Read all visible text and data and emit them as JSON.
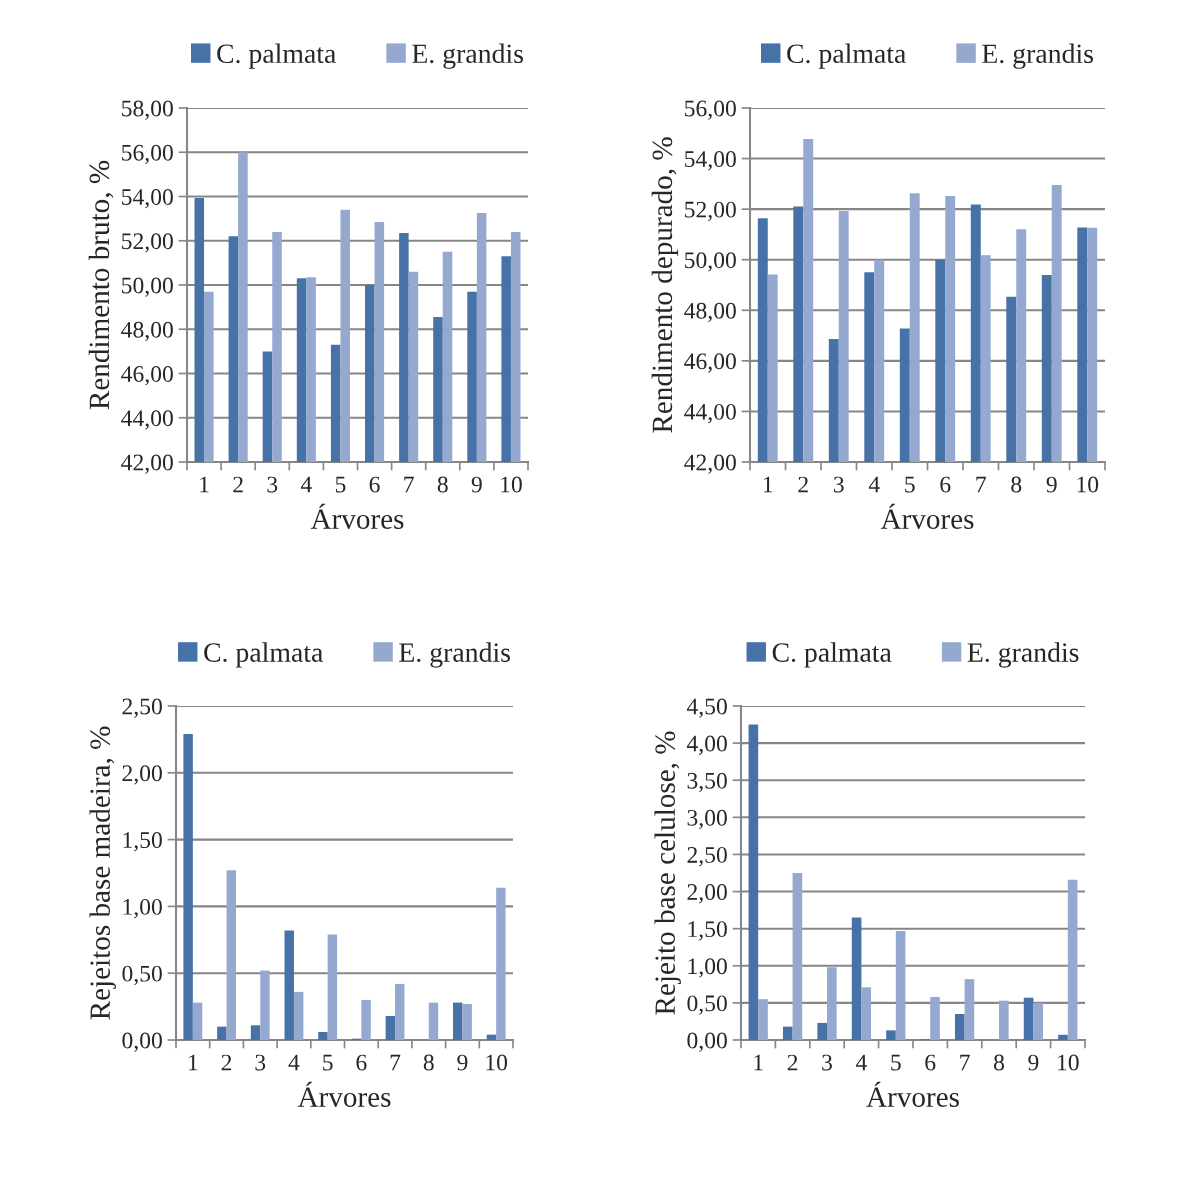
{
  "chart_data": [
    {
      "type": "bar",
      "categories": [
        "1",
        "2",
        "3",
        "4",
        "5",
        "6",
        "7",
        "8",
        "9",
        "10"
      ],
      "xlabel": "Árvores",
      "ylabel": "Rendimento bruto, %",
      "series": [
        {
          "name": "C. palmata",
          "color": "#4672a8",
          "values": [
            53.93,
            52.2,
            47.0,
            50.3,
            47.3,
            50.0,
            52.35,
            48.55,
            49.7,
            51.3
          ]
        },
        {
          "name": "E. grandis",
          "color": "#95a9d0",
          "values": [
            49.7,
            56.0,
            52.4,
            50.35,
            53.4,
            52.85,
            50.6,
            51.5,
            53.25,
            52.4
          ]
        }
      ],
      "ylim": [
        42,
        58
      ],
      "yticks": [
        {
          "value": 42,
          "label": "42,00"
        },
        {
          "value": 44,
          "label": "44,00"
        },
        {
          "value": 46,
          "label": "46,00"
        },
        {
          "value": 48,
          "label": "48,00"
        },
        {
          "value": 50,
          "label": "50,00"
        },
        {
          "value": 52,
          "label": "52,00"
        },
        {
          "value": 54,
          "label": "54,00"
        },
        {
          "value": 56,
          "label": "56,00"
        },
        {
          "value": 58,
          "label": "58,00"
        }
      ],
      "grid": "y",
      "legend": "top"
    },
    {
      "type": "bar",
      "categories": [
        "1",
        "2",
        "3",
        "4",
        "5",
        "6",
        "7",
        "8",
        "9",
        "10"
      ],
      "xlabel": "Árvores",
      "ylabel": "Rendimento depurado, %",
      "series": [
        {
          "name": "C. palmata",
          "color": "#4672a8",
          "values": [
            51.64,
            52.1,
            46.86,
            49.5,
            47.28,
            50.0,
            52.18,
            48.54,
            49.4,
            51.27
          ]
        },
        {
          "name": "E. grandis",
          "color": "#95a9d0",
          "values": [
            49.42,
            54.77,
            51.93,
            50.0,
            52.63,
            52.52,
            50.18,
            51.2,
            52.95,
            51.26
          ]
        }
      ],
      "ylim": [
        42,
        56
      ],
      "yticks": [
        {
          "value": 42,
          "label": "42,00"
        },
        {
          "value": 44,
          "label": "44,00"
        },
        {
          "value": 46,
          "label": "46,00"
        },
        {
          "value": 48,
          "label": "48,00"
        },
        {
          "value": 50,
          "label": "50,00"
        },
        {
          "value": 52,
          "label": "52,00"
        },
        {
          "value": 54,
          "label": "54,00"
        },
        {
          "value": 56,
          "label": "56,00"
        }
      ],
      "grid": "y",
      "legend": "top"
    },
    {
      "type": "bar",
      "categories": [
        "1",
        "2",
        "3",
        "4",
        "5",
        "6",
        "7",
        "8",
        "9",
        "10"
      ],
      "xlabel": "Árvores",
      "ylabel": "Rejeitos base madeira, %",
      "series": [
        {
          "name": "C. palmata",
          "color": "#4672a8",
          "values": [
            2.29,
            0.1,
            0.11,
            0.82,
            0.06,
            0.01,
            0.18,
            null,
            0.28,
            0.04
          ]
        },
        {
          "name": "E. grandis",
          "color": "#95a9d0",
          "values": [
            0.28,
            1.27,
            0.52,
            0.36,
            0.79,
            0.3,
            0.42,
            0.28,
            0.27,
            1.14
          ]
        }
      ],
      "ylim": [
        0,
        2.5
      ],
      "yticks": [
        {
          "value": 0,
          "label": "0,00"
        },
        {
          "value": 0.5,
          "label": "0,50"
        },
        {
          "value": 1.0,
          "label": "1,00"
        },
        {
          "value": 1.5,
          "label": "1,50"
        },
        {
          "value": 2.0,
          "label": "2,00"
        },
        {
          "value": 2.5,
          "label": "2,50"
        }
      ],
      "grid": "y",
      "legend": "top"
    },
    {
      "type": "bar",
      "categories": [
        "1",
        "2",
        "3",
        "4",
        "5",
        "6",
        "7",
        "8",
        "9",
        "10"
      ],
      "xlabel": "Árvores",
      "ylabel": "Rejeito base celulose, %",
      "series": [
        {
          "name": "C. palmata",
          "color": "#4672a8",
          "values": [
            4.25,
            0.18,
            0.23,
            1.65,
            0.13,
            0.01,
            0.35,
            null,
            0.57,
            0.07
          ]
        },
        {
          "name": "E. grandis",
          "color": "#95a9d0",
          "values": [
            0.55,
            2.25,
            0.98,
            0.71,
            1.47,
            0.58,
            0.82,
            0.53,
            0.5,
            2.16
          ]
        }
      ],
      "ylim": [
        0,
        4.5
      ],
      "yticks": [
        {
          "value": 0,
          "label": "0,00"
        },
        {
          "value": 0.5,
          "label": "0,50"
        },
        {
          "value": 1.0,
          "label": "1,00"
        },
        {
          "value": 1.5,
          "label": "1,50"
        },
        {
          "value": 2.0,
          "label": "2,00"
        },
        {
          "value": 2.5,
          "label": "2,50"
        },
        {
          "value": 3.0,
          "label": "3,00"
        },
        {
          "value": 3.5,
          "label": "3,50"
        },
        {
          "value": 4.0,
          "label": "4,00"
        },
        {
          "value": 4.5,
          "label": "4,50"
        }
      ],
      "grid": "y",
      "legend": "top"
    }
  ]
}
